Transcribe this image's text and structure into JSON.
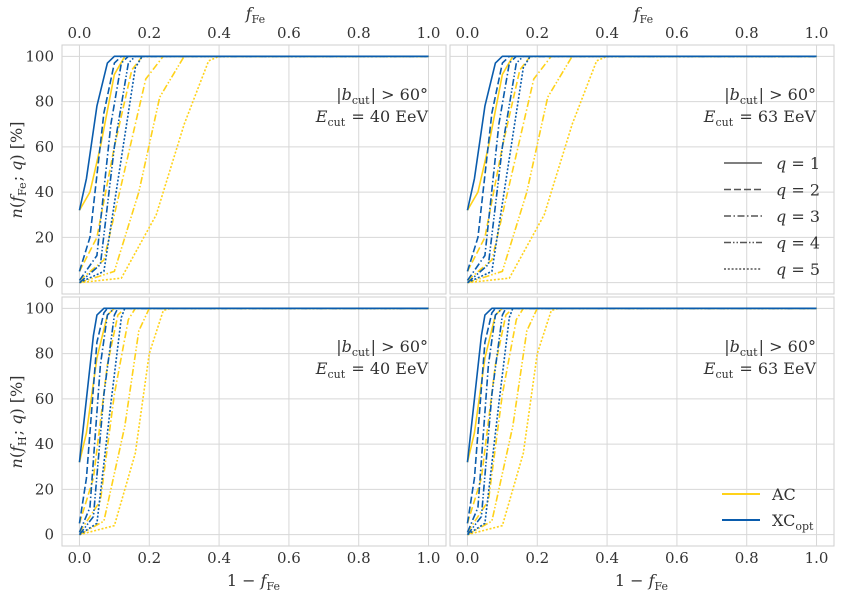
{
  "figure": {
    "top_axis_label": "f_Fe",
    "bottom_axis_label": "1 − f_Fe",
    "ylabel_top": "n(f_Fe; q) [%]",
    "ylabel_bottom": "n(f_H; q) [%]"
  },
  "legend_q": [
    "q = 1",
    "q = 2",
    "q = 3",
    "q = 4",
    "q = 5"
  ],
  "legend_method": [
    "AC",
    "XC_opt"
  ],
  "colors": {
    "AC": "#FFD21A",
    "XC": "#0A5CAD",
    "grid": "#d7d7d7",
    "legend_line": "#555555"
  },
  "chart_data": {
    "type": "line",
    "x_ticks": [
      "0.0",
      "0.2",
      "0.4",
      "0.6",
      "0.8",
      "1.0"
    ],
    "y_ticks": [
      "0",
      "20",
      "40",
      "60",
      "80",
      "100"
    ],
    "xlim": [
      -0.05,
      1.05
    ],
    "ylim": [
      -5,
      105
    ],
    "top_xlim": [
      0.0,
      1.0
    ],
    "line_styles": {
      "q1": "solid",
      "q2": "dashed",
      "q3": "dashdot",
      "q4": "dashdotdot",
      "q5": "dotted"
    },
    "panels": [
      {
        "row": "top",
        "col": "left",
        "annotation_line1": "|b_cut| > 60°",
        "annotation_line2": "E_cut = 40 EeV",
        "AC": {
          "q1": [
            [
              0,
              32
            ],
            [
              0.03,
              40
            ],
            [
              0.06,
              60
            ],
            [
              0.1,
              92
            ],
            [
              0.13,
              100
            ],
            [
              1.0,
              100
            ]
          ],
          "q2": [
            [
              0,
              5
            ],
            [
              0.05,
              20
            ],
            [
              0.1,
              60
            ],
            [
              0.15,
              94
            ],
            [
              0.18,
              100
            ],
            [
              1.0,
              100
            ]
          ],
          "q3": [
            [
              0,
              1
            ],
            [
              0.07,
              10
            ],
            [
              0.13,
              50
            ],
            [
              0.19,
              90
            ],
            [
              0.24,
              100
            ],
            [
              1.0,
              100
            ]
          ],
          "q4": [
            [
              0,
              0
            ],
            [
              0.1,
              5
            ],
            [
              0.17,
              40
            ],
            [
              0.23,
              82
            ],
            [
              0.3,
              100
            ],
            [
              1.0,
              100
            ]
          ],
          "q5": [
            [
              0,
              0
            ],
            [
              0.12,
              2
            ],
            [
              0.22,
              30
            ],
            [
              0.3,
              70
            ],
            [
              0.37,
              98
            ],
            [
              0.4,
              100
            ],
            [
              1.0,
              100
            ]
          ]
        },
        "XC": {
          "q1": [
            [
              0,
              32
            ],
            [
              0.02,
              46
            ],
            [
              0.05,
              78
            ],
            [
              0.08,
              97
            ],
            [
              0.1,
              100
            ],
            [
              1.0,
              100
            ]
          ],
          "q2": [
            [
              0,
              5
            ],
            [
              0.03,
              20
            ],
            [
              0.07,
              75
            ],
            [
              0.1,
              97
            ],
            [
              0.12,
              100
            ],
            [
              1.0,
              100
            ]
          ],
          "q3": [
            [
              0,
              1
            ],
            [
              0.05,
              12
            ],
            [
              0.09,
              70
            ],
            [
              0.12,
              97
            ],
            [
              0.14,
              100
            ],
            [
              1.0,
              100
            ]
          ],
          "q4": [
            [
              0,
              0
            ],
            [
              0.06,
              8
            ],
            [
              0.1,
              60
            ],
            [
              0.14,
              97
            ],
            [
              0.16,
              100
            ],
            [
              1.0,
              100
            ]
          ],
          "q5": [
            [
              0,
              0
            ],
            [
              0.07,
              5
            ],
            [
              0.12,
              55
            ],
            [
              0.16,
              95
            ],
            [
              0.18,
              100
            ],
            [
              1.0,
              100
            ]
          ]
        }
      },
      {
        "row": "top",
        "col": "right",
        "annotation_line1": "|b_cut| > 60°",
        "annotation_line2": "E_cut = 63 EeV",
        "AC": {
          "q1": [
            [
              0,
              32
            ],
            [
              0.03,
              40
            ],
            [
              0.06,
              60
            ],
            [
              0.1,
              92
            ],
            [
              0.13,
              100
            ],
            [
              1.0,
              100
            ]
          ],
          "q2": [
            [
              0,
              5
            ],
            [
              0.05,
              20
            ],
            [
              0.1,
              60
            ],
            [
              0.15,
              94
            ],
            [
              0.18,
              100
            ],
            [
              1.0,
              100
            ]
          ],
          "q3": [
            [
              0,
              1
            ],
            [
              0.07,
              10
            ],
            [
              0.13,
              50
            ],
            [
              0.19,
              90
            ],
            [
              0.24,
              100
            ],
            [
              1.0,
              100
            ]
          ],
          "q4": [
            [
              0,
              0
            ],
            [
              0.1,
              5
            ],
            [
              0.17,
              40
            ],
            [
              0.23,
              82
            ],
            [
              0.3,
              100
            ],
            [
              1.0,
              100
            ]
          ],
          "q5": [
            [
              0,
              0
            ],
            [
              0.12,
              2
            ],
            [
              0.22,
              30
            ],
            [
              0.3,
              70
            ],
            [
              0.37,
              98
            ],
            [
              0.4,
              100
            ],
            [
              1.0,
              100
            ]
          ]
        },
        "XC": {
          "q1": [
            [
              0,
              32
            ],
            [
              0.02,
              46
            ],
            [
              0.05,
              78
            ],
            [
              0.08,
              97
            ],
            [
              0.1,
              100
            ],
            [
              1.0,
              100
            ]
          ],
          "q2": [
            [
              0,
              5
            ],
            [
              0.03,
              20
            ],
            [
              0.07,
              75
            ],
            [
              0.1,
              97
            ],
            [
              0.12,
              100
            ],
            [
              1.0,
              100
            ]
          ],
          "q3": [
            [
              0,
              1
            ],
            [
              0.05,
              12
            ],
            [
              0.09,
              70
            ],
            [
              0.12,
              97
            ],
            [
              0.14,
              100
            ],
            [
              1.0,
              100
            ]
          ],
          "q4": [
            [
              0,
              0
            ],
            [
              0.06,
              8
            ],
            [
              0.1,
              60
            ],
            [
              0.14,
              97
            ],
            [
              0.16,
              100
            ],
            [
              1.0,
              100
            ]
          ],
          "q5": [
            [
              0,
              0
            ],
            [
              0.07,
              5
            ],
            [
              0.12,
              55
            ],
            [
              0.16,
              95
            ],
            [
              0.18,
              100
            ],
            [
              1.0,
              100
            ]
          ]
        }
      },
      {
        "row": "bottom",
        "col": "left",
        "annotation_line1": "|b_cut| > 60°",
        "annotation_line2": "E_cut = 40 EeV",
        "AC": {
          "q1": [
            [
              0,
              32
            ],
            [
              0.02,
              45
            ],
            [
              0.05,
              78
            ],
            [
              0.08,
              97
            ],
            [
              0.1,
              100
            ],
            [
              1.0,
              100
            ]
          ],
          "q2": [
            [
              0,
              5
            ],
            [
              0.04,
              25
            ],
            [
              0.08,
              75
            ],
            [
              0.11,
              97
            ],
            [
              0.13,
              100
            ],
            [
              1.0,
              100
            ]
          ],
          "q3": [
            [
              0,
              1
            ],
            [
              0.06,
              15
            ],
            [
              0.1,
              62
            ],
            [
              0.14,
              95
            ],
            [
              0.16,
              100
            ],
            [
              1.0,
              100
            ]
          ],
          "q4": [
            [
              0,
              0
            ],
            [
              0.07,
              6
            ],
            [
              0.13,
              48
            ],
            [
              0.17,
              90
            ],
            [
              0.2,
              100
            ],
            [
              1.0,
              100
            ]
          ],
          "q5": [
            [
              0,
              0
            ],
            [
              0.1,
              4
            ],
            [
              0.16,
              36
            ],
            [
              0.2,
              80
            ],
            [
              0.24,
              99
            ],
            [
              0.26,
              100
            ],
            [
              1.0,
              100
            ]
          ]
        },
        "XC": {
          "q1": [
            [
              0,
              32
            ],
            [
              0.02,
              60
            ],
            [
              0.04,
              88
            ],
            [
              0.05,
              97
            ],
            [
              0.07,
              100
            ],
            [
              1.0,
              100
            ]
          ],
          "q2": [
            [
              0,
              5
            ],
            [
              0.02,
              25
            ],
            [
              0.05,
              85
            ],
            [
              0.07,
              98
            ],
            [
              0.08,
              100
            ],
            [
              1.0,
              100
            ]
          ],
          "q3": [
            [
              0,
              1
            ],
            [
              0.03,
              12
            ],
            [
              0.06,
              75
            ],
            [
              0.08,
              97
            ],
            [
              0.1,
              100
            ],
            [
              1.0,
              100
            ]
          ],
          "q4": [
            [
              0,
              0
            ],
            [
              0.04,
              8
            ],
            [
              0.07,
              62
            ],
            [
              0.1,
              97
            ],
            [
              0.11,
              100
            ],
            [
              1.0,
              100
            ]
          ],
          "q5": [
            [
              0,
              0
            ],
            [
              0.05,
              5
            ],
            [
              0.09,
              58
            ],
            [
              0.12,
              96
            ],
            [
              0.13,
              100
            ],
            [
              1.0,
              100
            ]
          ]
        }
      },
      {
        "row": "bottom",
        "col": "right",
        "annotation_line1": "|b_cut| > 60°",
        "annotation_line2": "E_cut = 63 EeV",
        "AC": {
          "q1": [
            [
              0,
              32
            ],
            [
              0.02,
              45
            ],
            [
              0.05,
              78
            ],
            [
              0.08,
              97
            ],
            [
              0.1,
              100
            ],
            [
              1.0,
              100
            ]
          ],
          "q2": [
            [
              0,
              5
            ],
            [
              0.04,
              25
            ],
            [
              0.08,
              75
            ],
            [
              0.11,
              97
            ],
            [
              0.13,
              100
            ],
            [
              1.0,
              100
            ]
          ],
          "q3": [
            [
              0,
              1
            ],
            [
              0.06,
              15
            ],
            [
              0.1,
              62
            ],
            [
              0.14,
              95
            ],
            [
              0.16,
              100
            ],
            [
              1.0,
              100
            ]
          ],
          "q4": [
            [
              0,
              0
            ],
            [
              0.07,
              6
            ],
            [
              0.13,
              48
            ],
            [
              0.17,
              90
            ],
            [
              0.2,
              100
            ],
            [
              1.0,
              100
            ]
          ],
          "q5": [
            [
              0,
              0
            ],
            [
              0.1,
              4
            ],
            [
              0.16,
              36
            ],
            [
              0.2,
              80
            ],
            [
              0.24,
              99
            ],
            [
              0.26,
              100
            ],
            [
              1.0,
              100
            ]
          ]
        },
        "XC": {
          "q1": [
            [
              0,
              32
            ],
            [
              0.02,
              60
            ],
            [
              0.04,
              88
            ],
            [
              0.05,
              97
            ],
            [
              0.07,
              100
            ],
            [
              1.0,
              100
            ]
          ],
          "q2": [
            [
              0,
              5
            ],
            [
              0.02,
              25
            ],
            [
              0.05,
              85
            ],
            [
              0.07,
              98
            ],
            [
              0.08,
              100
            ],
            [
              1.0,
              100
            ]
          ],
          "q3": [
            [
              0,
              1
            ],
            [
              0.03,
              12
            ],
            [
              0.06,
              75
            ],
            [
              0.08,
              97
            ],
            [
              0.1,
              100
            ],
            [
              1.0,
              100
            ]
          ],
          "q4": [
            [
              0,
              0
            ],
            [
              0.04,
              8
            ],
            [
              0.07,
              62
            ],
            [
              0.1,
              97
            ],
            [
              0.11,
              100
            ],
            [
              1.0,
              100
            ]
          ],
          "q5": [
            [
              0,
              0
            ],
            [
              0.05,
              5
            ],
            [
              0.09,
              58
            ],
            [
              0.12,
              96
            ],
            [
              0.13,
              100
            ],
            [
              1.0,
              100
            ]
          ]
        }
      }
    ]
  }
}
